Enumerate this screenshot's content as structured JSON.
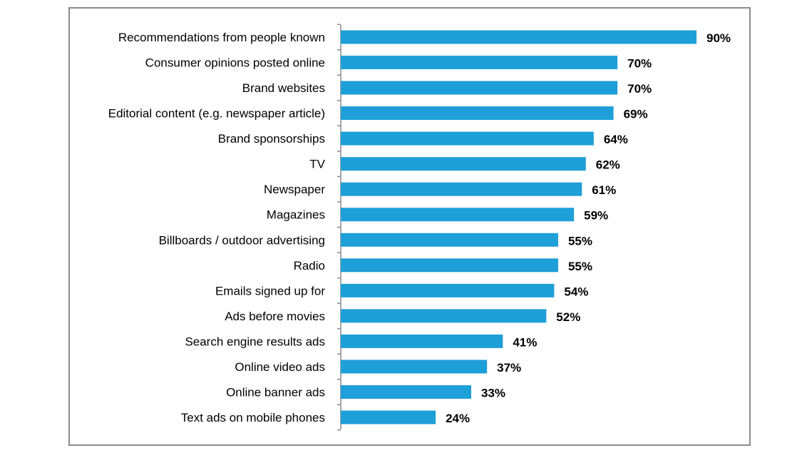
{
  "chart_data": {
    "type": "bar",
    "orientation": "horizontal",
    "title": "",
    "xlabel": "",
    "ylabel": "",
    "xlim": [
      0,
      100
    ],
    "grid": false,
    "legend": "none",
    "bar_color": "#1E9FD8",
    "value_suffix": "%",
    "categories": [
      "Recommendations from people known",
      "Consumer opinions posted online",
      "Brand websites",
      "Editorial content (e.g. newspaper article)",
      "Brand sponsorships",
      "TV",
      "Newspaper",
      "Magazines",
      "Billboards / outdoor advertising",
      "Radio",
      "Emails signed up for",
      "Ads before movies",
      "Search engine results ads",
      "Online video ads",
      "Online banner ads",
      "Text ads on mobile phones"
    ],
    "values": [
      90,
      70,
      70,
      69,
      64,
      62,
      61,
      59,
      55,
      55,
      54,
      52,
      41,
      37,
      33,
      24
    ],
    "value_labels": [
      "90%",
      "70%",
      "70%",
      "69%",
      "64%",
      "62%",
      "61%",
      "59%",
      "55%",
      "55%",
      "54%",
      "52%",
      "41%",
      "37%",
      "33%",
      "24%"
    ]
  }
}
